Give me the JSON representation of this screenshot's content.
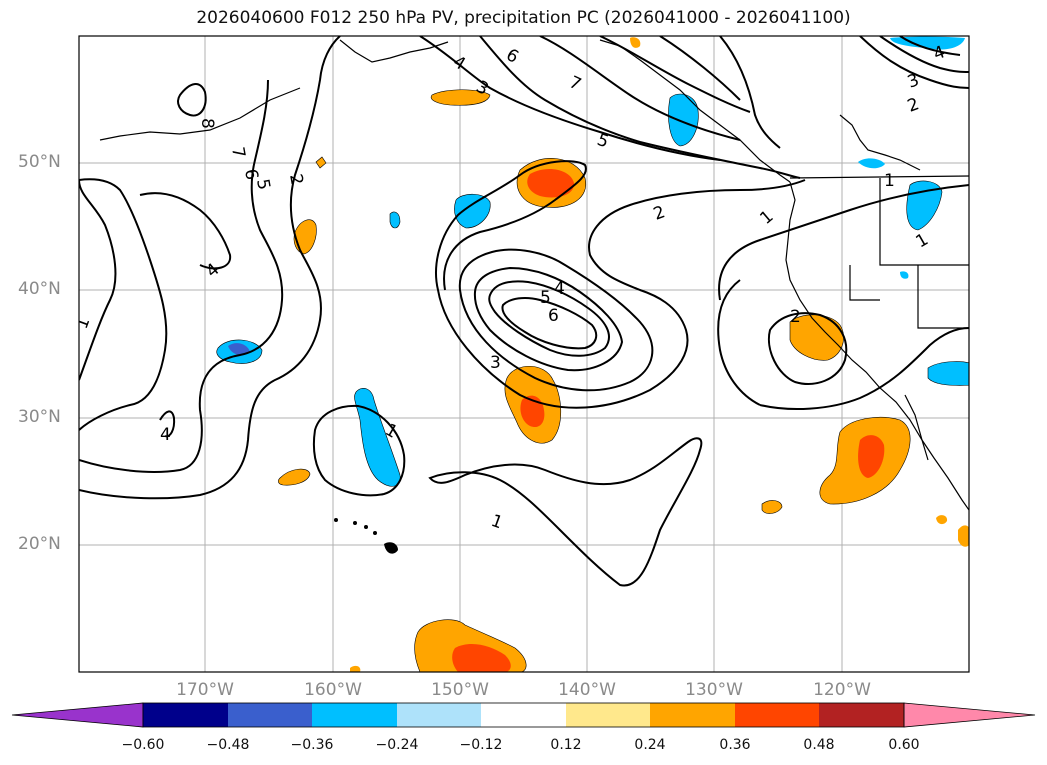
{
  "title": "2026040600 F012 250 hPa PV, precipitation PC (2026041000 - 2026041100)",
  "lat_labels": [
    "50°N",
    "40°N",
    "30°N",
    "20°N"
  ],
  "lon_labels": [
    "170°W",
    "160°W",
    "150°W",
    "140°W",
    "130°W",
    "120°W"
  ],
  "colorbar": {
    "ticks": [
      "−0.60",
      "−0.48",
      "−0.36",
      "−0.24",
      "−0.12",
      "0.12",
      "0.24",
      "0.36",
      "0.48",
      "0.60"
    ],
    "colors": [
      "#9933cc",
      "#00008b",
      "#3a5fcd",
      "#00bfff",
      "#aee2fa",
      "#ffffff",
      "#ffe88c",
      "#ffa500",
      "#ff4500",
      "#b22222",
      "#ff88aa"
    ]
  },
  "contour_labels": {
    "l1": "1",
    "l2": "2",
    "l3": "3",
    "l4": "4",
    "l5": "5",
    "l6": "6",
    "l7": "7",
    "l8": "8"
  }
}
